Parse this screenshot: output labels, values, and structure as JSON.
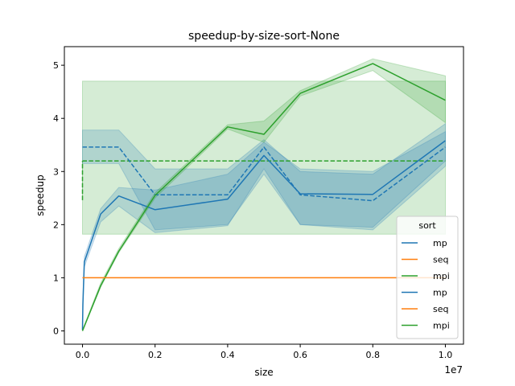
{
  "chart_data": {
    "type": "line",
    "title": "speedup-by-size-sort-None",
    "xlabel": "size",
    "ylabel": "speedup",
    "x_offset_label": "1e7",
    "xlim": [
      -500000,
      10500000
    ],
    "ylim": [
      -0.25,
      5.35
    ],
    "x_ticks": [
      0,
      2000000,
      4000000,
      6000000,
      8000000,
      10000000
    ],
    "x_tick_labels": [
      "0.0",
      "0.2",
      "0.4",
      "0.6",
      "0.8",
      "1.0"
    ],
    "y_ticks": [
      0,
      1,
      2,
      3,
      4,
      5
    ],
    "y_tick_labels": [
      "0",
      "1",
      "2",
      "3",
      "4",
      "5"
    ],
    "grid": false,
    "legend": {
      "title": "sort",
      "position": "lower-right",
      "entries": [
        {
          "label": "mp",
          "color": "#1f77b4"
        },
        {
          "label": "seq",
          "color": "#ff7f0e"
        },
        {
          "label": "mpi",
          "color": "#2ca02c"
        },
        {
          "label": "mp",
          "color": "#1f77b4"
        },
        {
          "label": "seq",
          "color": "#ff7f0e"
        },
        {
          "label": "mpi",
          "color": "#2ca02c"
        }
      ]
    },
    "series": [
      {
        "color": "#2ca02c",
        "dash": "dashed",
        "x": [
          0,
          10000000
        ],
        "y": [
          3.2,
          3.2
        ],
        "band_lower": [
          1.82,
          1.82
        ],
        "band_upper": [
          4.7,
          4.7
        ]
      },
      {
        "color": "#1f77b4",
        "dash": "dashed",
        "x": [
          0,
          100000,
          1000000,
          2000000,
          4000000,
          5000000,
          6000000,
          8000000,
          10000000
        ],
        "y": [
          3.46,
          3.46,
          3.46,
          2.56,
          2.56,
          3.46,
          2.56,
          2.45,
          3.46
        ],
        "band_lower": [
          3.15,
          3.15,
          3.15,
          1.9,
          2.0,
          2.95,
          2.0,
          1.9,
          3.1
        ],
        "band_upper": [
          3.78,
          3.78,
          3.78,
          3.05,
          3.05,
          3.6,
          3.0,
          2.95,
          3.9
        ]
      },
      {
        "color": "#1f77b4",
        "dash": "solid",
        "x": [
          0,
          10000,
          50000,
          100000,
          500000,
          1000000,
          2000000,
          4000000,
          5000000,
          6000000,
          8000000,
          10000000
        ],
        "y": [
          0.02,
          0.5,
          1.3,
          1.4,
          2.2,
          2.54,
          2.28,
          2.48,
          3.3,
          2.58,
          2.57,
          3.58
        ],
        "band_lower": [
          0.0,
          0.4,
          1.2,
          1.3,
          2.05,
          2.35,
          1.85,
          1.98,
          3.05,
          2.0,
          1.95,
          3.2
        ],
        "band_upper": [
          0.05,
          0.6,
          1.4,
          1.5,
          2.3,
          2.7,
          2.65,
          2.95,
          3.55,
          3.05,
          3.0,
          3.75
        ]
      },
      {
        "color": "#2ca02c",
        "dash": "solid",
        "x": [
          0,
          500000,
          1000000,
          2000000,
          4000000,
          5000000,
          6000000,
          8000000,
          10000000
        ],
        "y": [
          0.0,
          0.85,
          1.5,
          2.55,
          3.84,
          3.7,
          4.47,
          5.03,
          4.34
        ],
        "band_lower": [
          0.0,
          0.82,
          1.47,
          2.5,
          3.8,
          3.55,
          4.42,
          4.9,
          3.92
        ],
        "band_upper": [
          0.02,
          0.9,
          1.55,
          2.6,
          3.88,
          3.95,
          4.52,
          5.12,
          4.8
        ]
      },
      {
        "color": "#ff7f0e",
        "dash": "solid",
        "x": [
          0,
          10000000
        ],
        "y": [
          1.0,
          1.0
        ],
        "band_lower": [
          1.0,
          1.0
        ],
        "band_upper": [
          1.0,
          1.0
        ]
      },
      {
        "color": "#2ca02c",
        "dash": "dashed",
        "x": [
          0,
          0,
          0
        ],
        "y": [
          2.46,
          3.2,
          3.2
        ],
        "band_lower": [
          2.46,
          3.2,
          3.2
        ],
        "band_upper": [
          2.46,
          3.2,
          3.2
        ]
      }
    ]
  }
}
